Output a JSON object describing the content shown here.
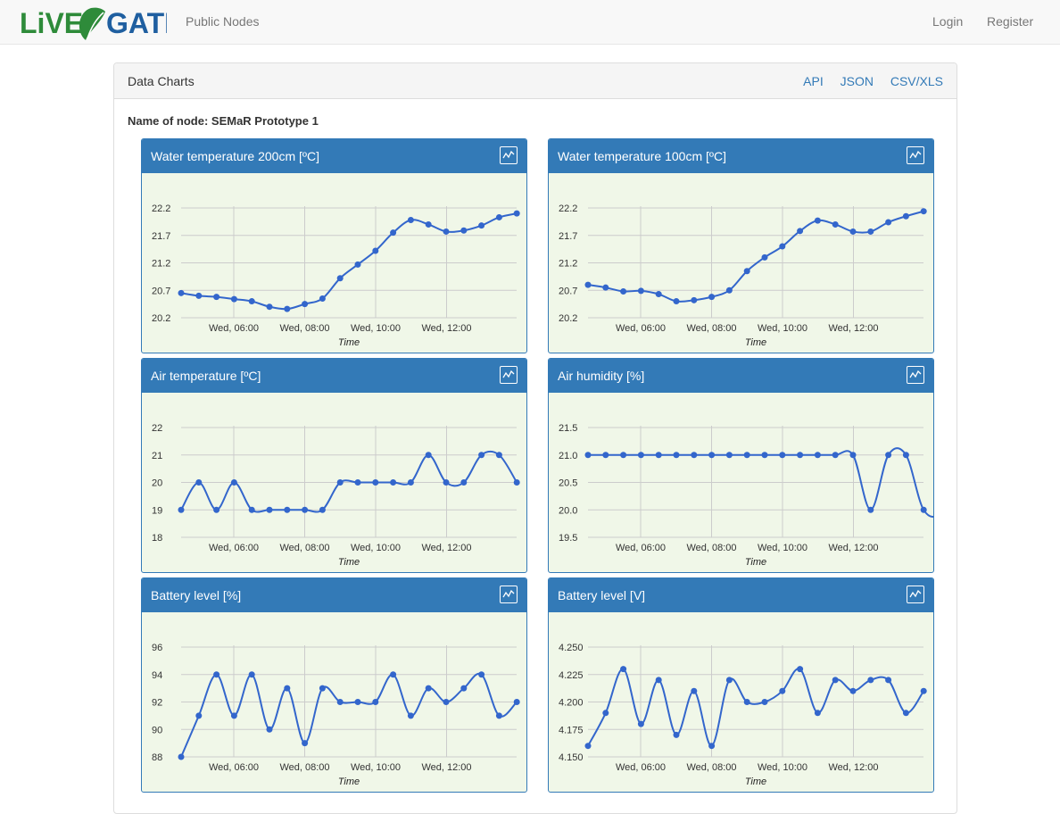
{
  "navbar": {
    "brand": "LiVE GATE",
    "public_nodes": "Public Nodes",
    "login": "Login",
    "register": "Register"
  },
  "panel": {
    "title": "Data Charts",
    "links": [
      "API",
      "JSON",
      "CSV/XLS"
    ],
    "node_label": "Name of node: SEMaR Prototype 1"
  },
  "colors": {
    "series": "#3366cc",
    "header": "#337ab7",
    "plot_bg": "#f0f7e8"
  },
  "chart_data": [
    {
      "type": "line",
      "title": "Water temperature 200cm [ºC]",
      "xlabel": "Time",
      "x_ticks": [
        "Wed, 06:00",
        "Wed, 08:00",
        "Wed, 10:00",
        "Wed, 12:00"
      ],
      "x_tick_pos": [
        3,
        7,
        11,
        15
      ],
      "y_ticks": [
        "20.2",
        "20.7",
        "21.2",
        "21.7",
        "22.2"
      ],
      "ylim": [
        20.2,
        22.2
      ],
      "values": [
        20.65,
        20.6,
        20.58,
        20.54,
        20.5,
        20.4,
        20.36,
        20.45,
        20.55,
        20.92,
        21.17,
        21.42,
        21.75,
        21.98,
        21.9,
        21.77,
        21.79,
        21.88,
        22.03,
        22.1
      ]
    },
    {
      "type": "line",
      "title": "Water temperature 100cm [ºC]",
      "xlabel": "Time",
      "x_ticks": [
        "Wed, 06:00",
        "Wed, 08:00",
        "Wed, 10:00",
        "Wed, 12:00"
      ],
      "x_tick_pos": [
        3,
        7,
        11,
        15
      ],
      "y_ticks": [
        "20.2",
        "20.7",
        "21.2",
        "21.7",
        "22.2"
      ],
      "ylim": [
        20.2,
        22.2
      ],
      "values": [
        20.8,
        20.75,
        20.68,
        20.69,
        20.63,
        20.5,
        20.52,
        20.58,
        20.7,
        21.05,
        21.3,
        21.5,
        21.78,
        21.97,
        21.9,
        21.77,
        21.77,
        21.94,
        22.05,
        22.14
      ]
    },
    {
      "type": "line",
      "title": "Air temperature [ºC]",
      "xlabel": "Time",
      "x_ticks": [
        "Wed, 06:00",
        "Wed, 08:00",
        "Wed, 10:00",
        "Wed, 12:00"
      ],
      "x_tick_pos": [
        3,
        7,
        11,
        15
      ],
      "y_ticks": [
        "18",
        "19",
        "20",
        "21",
        "22"
      ],
      "ylim": [
        18,
        22
      ],
      "values": [
        19,
        20,
        19,
        20,
        19,
        19,
        19,
        19,
        19,
        20,
        20,
        20,
        20,
        20,
        21,
        20,
        20,
        21,
        21,
        20
      ]
    },
    {
      "type": "line",
      "title": "Air humidity [%]",
      "xlabel": "Time",
      "x_ticks": [
        "Wed, 06:00",
        "Wed, 08:00",
        "Wed, 10:00",
        "Wed, 12:00"
      ],
      "x_tick_pos": [
        3,
        7,
        11,
        15
      ],
      "y_ticks": [
        "19.5",
        "20.0",
        "20.5",
        "21.0",
        "21.5"
      ],
      "ylim": [
        19.5,
        21.5
      ],
      "values": [
        21,
        21,
        21,
        21,
        21,
        21,
        21,
        21,
        21,
        21,
        21,
        21,
        21,
        21,
        21,
        21,
        20,
        21,
        21,
        20,
        20,
        21
      ]
    },
    {
      "type": "line",
      "title": "Battery level [%]",
      "xlabel": "Time",
      "x_ticks": [
        "Wed, 06:00",
        "Wed, 08:00",
        "Wed, 10:00",
        "Wed, 12:00"
      ],
      "x_tick_pos": [
        3,
        7,
        11,
        15
      ],
      "y_ticks": [
        "88",
        "90",
        "92",
        "94",
        "96"
      ],
      "ylim": [
        88,
        96
      ],
      "values": [
        88,
        91,
        94,
        91,
        94,
        90,
        93,
        89,
        93,
        92,
        92,
        92,
        94,
        91,
        93,
        92,
        93,
        94,
        91,
        92
      ]
    },
    {
      "type": "line",
      "title": "Battery level [V]",
      "xlabel": "Time",
      "x_ticks": [
        "Wed, 06:00",
        "Wed, 08:00",
        "Wed, 10:00",
        "Wed, 12:00"
      ],
      "x_tick_pos": [
        3,
        7,
        11,
        15
      ],
      "y_ticks": [
        "4.150",
        "4.175",
        "4.200",
        "4.225",
        "4.250"
      ],
      "ylim": [
        4.15,
        4.25
      ],
      "values": [
        4.16,
        4.19,
        4.23,
        4.18,
        4.22,
        4.17,
        4.21,
        4.16,
        4.22,
        4.2,
        4.2,
        4.21,
        4.23,
        4.19,
        4.22,
        4.21,
        4.22,
        4.22,
        4.19,
        4.21
      ]
    }
  ]
}
